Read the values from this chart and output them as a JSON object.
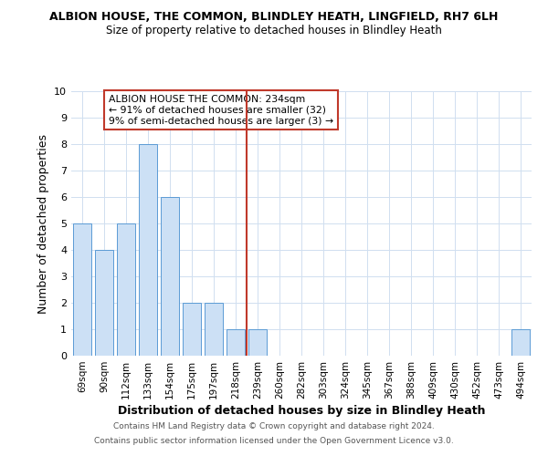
{
  "title": "ALBION HOUSE, THE COMMON, BLINDLEY HEATH, LINGFIELD, RH7 6LH",
  "subtitle": "Size of property relative to detached houses in Blindley Heath",
  "xlabel": "Distribution of detached houses by size in Blindley Heath",
  "ylabel": "Number of detached properties",
  "categories": [
    "69sqm",
    "90sqm",
    "112sqm",
    "133sqm",
    "154sqm",
    "175sqm",
    "197sqm",
    "218sqm",
    "239sqm",
    "260sqm",
    "282sqm",
    "303sqm",
    "324sqm",
    "345sqm",
    "367sqm",
    "388sqm",
    "409sqm",
    "430sqm",
    "452sqm",
    "473sqm",
    "494sqm"
  ],
  "values": [
    5,
    4,
    5,
    8,
    6,
    2,
    2,
    1,
    1,
    0,
    0,
    0,
    0,
    0,
    0,
    0,
    0,
    0,
    0,
    0,
    1
  ],
  "bar_color": "#cce0f5",
  "bar_edge_color": "#5b9bd5",
  "vline_x_index": 8,
  "vline_color": "#c0392b",
  "ylim": [
    0,
    10
  ],
  "yticks": [
    0,
    1,
    2,
    3,
    4,
    5,
    6,
    7,
    8,
    9,
    10
  ],
  "annotation_lines": [
    "ALBION HOUSE THE COMMON: 234sqm",
    "← 91% of detached houses are smaller (32)",
    "9% of semi-detached houses are larger (3) →"
  ],
  "annotation_box_color": "#ffffff",
  "annotation_box_edge_color": "#c0392b",
  "footer_lines": [
    "Contains HM Land Registry data © Crown copyright and database right 2024.",
    "Contains public sector information licensed under the Open Government Licence v3.0."
  ],
  "background_color": "#ffffff",
  "grid_color": "#d0dff0"
}
